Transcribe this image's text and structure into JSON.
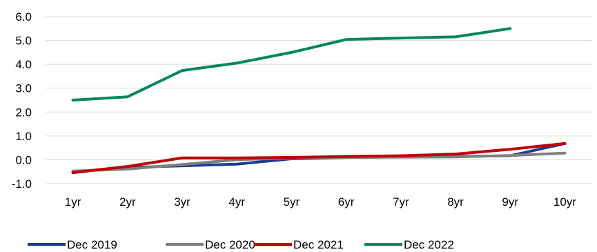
{
  "chart_data": {
    "type": "line",
    "title": "",
    "xlabel": "",
    "ylabel": "",
    "categories": [
      "1yr",
      "2yr",
      "3yr",
      "4yr",
      "5yr",
      "6yr",
      "7yr",
      "8yr",
      "9yr",
      "10yr"
    ],
    "ylim": [
      -1.0,
      6.0
    ],
    "yticks": [
      "-1.0",
      "0.0",
      "1.0",
      "2.0",
      "3.0",
      "4.0",
      "5.0",
      "6.0"
    ],
    "grid": "horizontal",
    "legend_position": "bottom",
    "series": [
      {
        "name": "Dec 2019",
        "color": "#1f3a93",
        "values": [
          -0.5,
          -0.33,
          -0.25,
          -0.18,
          0.04,
          0.1,
          0.12,
          0.14,
          0.17,
          0.68
        ]
      },
      {
        "name": "Dec 2020",
        "color": "#808080",
        "values": [
          -0.47,
          -0.39,
          -0.2,
          0.0,
          0.08,
          0.1,
          0.11,
          0.12,
          0.18,
          0.28
        ]
      },
      {
        "name": "Dec 2021",
        "color": "#c00000",
        "values": [
          -0.54,
          -0.28,
          0.08,
          0.08,
          0.1,
          0.14,
          0.17,
          0.24,
          0.44,
          0.68
        ]
      },
      {
        "name": "Dec 2022",
        "color": "#00875a",
        "values": [
          2.5,
          2.64,
          3.74,
          4.05,
          4.5,
          5.04,
          5.1,
          5.15,
          5.5,
          null
        ]
      }
    ]
  }
}
